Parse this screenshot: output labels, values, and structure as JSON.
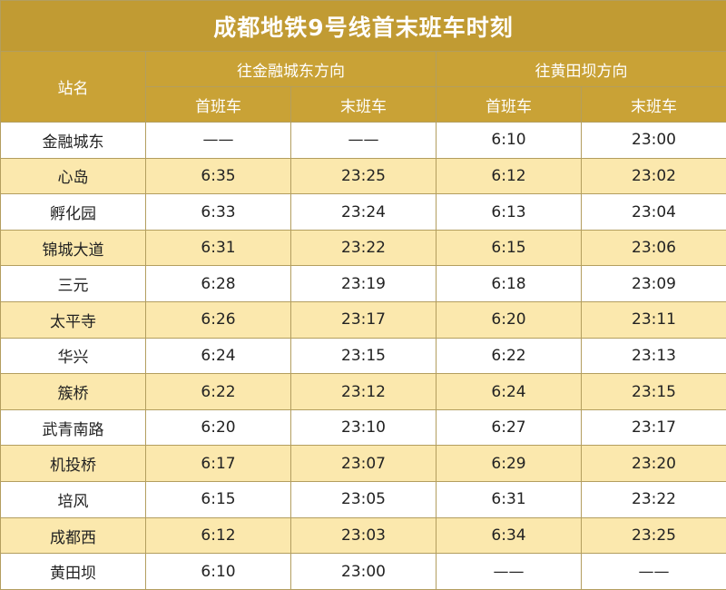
{
  "title": "成都地铁9号线首末班车时刻",
  "header": {
    "station_label": "站名",
    "directions": [
      {
        "label": "往金融城东方向",
        "first_label": "首班车",
        "last_label": "末班车"
      },
      {
        "label": "往黄田坝方向",
        "first_label": "首班车",
        "last_label": "末班车"
      }
    ]
  },
  "colors": {
    "header_bg": "#c9a236",
    "row_stripe": "#fbe8ad",
    "border": "#b39e5f"
  },
  "rows": [
    {
      "station": "金融城东",
      "dir1_first": "——",
      "dir1_last": "——",
      "dir2_first": "6:10",
      "dir2_last": "23:00"
    },
    {
      "station": "心岛",
      "dir1_first": "6:35",
      "dir1_last": "23:25",
      "dir2_first": "6:12",
      "dir2_last": "23:02"
    },
    {
      "station": "孵化园",
      "dir1_first": "6:33",
      "dir1_last": "23:24",
      "dir2_first": "6:13",
      "dir2_last": "23:04"
    },
    {
      "station": "锦城大道",
      "dir1_first": "6:31",
      "dir1_last": "23:22",
      "dir2_first": "6:15",
      "dir2_last": "23:06"
    },
    {
      "station": "三元",
      "dir1_first": "6:28",
      "dir1_last": "23:19",
      "dir2_first": "6:18",
      "dir2_last": "23:09"
    },
    {
      "station": "太平寺",
      "dir1_first": "6:26",
      "dir1_last": "23:17",
      "dir2_first": "6:20",
      "dir2_last": "23:11"
    },
    {
      "station": "华兴",
      "dir1_first": "6:24",
      "dir1_last": "23:15",
      "dir2_first": "6:22",
      "dir2_last": "23:13"
    },
    {
      "station": "簇桥",
      "dir1_first": "6:22",
      "dir1_last": "23:12",
      "dir2_first": "6:24",
      "dir2_last": "23:15"
    },
    {
      "station": "武青南路",
      "dir1_first": "6:20",
      "dir1_last": "23:10",
      "dir2_first": "6:27",
      "dir2_last": "23:17"
    },
    {
      "station": "机投桥",
      "dir1_first": "6:17",
      "dir1_last": "23:07",
      "dir2_first": "6:29",
      "dir2_last": "23:20"
    },
    {
      "station": "培风",
      "dir1_first": "6:15",
      "dir1_last": "23:05",
      "dir2_first": "6:31",
      "dir2_last": "23:22"
    },
    {
      "station": "成都西",
      "dir1_first": "6:12",
      "dir1_last": "23:03",
      "dir2_first": "6:34",
      "dir2_last": "23:25"
    },
    {
      "station": "黄田坝",
      "dir1_first": "6:10",
      "dir1_last": "23:00",
      "dir2_first": "——",
      "dir2_last": "——"
    }
  ]
}
